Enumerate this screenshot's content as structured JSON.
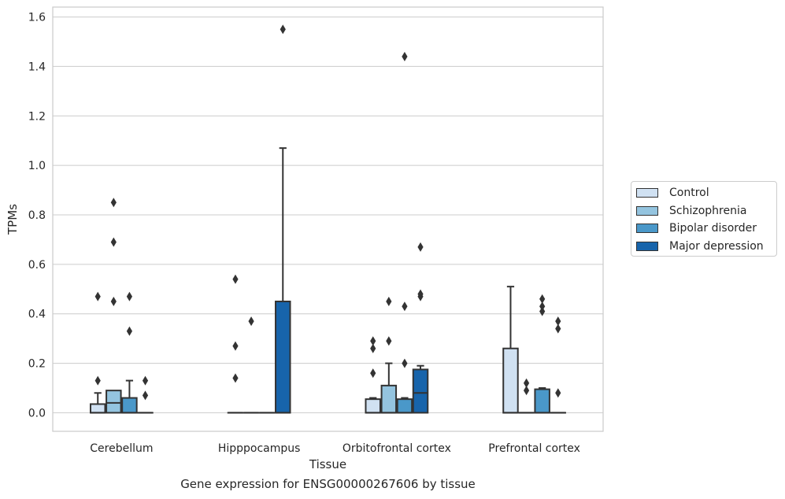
{
  "caption": "Gene expression for ENSG00000267606 by tissue",
  "chart_data": {
    "type": "box",
    "xlabel": "Tissue",
    "ylabel": "TPMs",
    "ylim": [
      -0.075,
      1.64
    ],
    "yticks": [
      "0.0",
      "0.2",
      "0.4",
      "0.6",
      "0.8",
      "1.0",
      "1.2",
      "1.4",
      "1.6"
    ],
    "grid": true,
    "legend_position": "right",
    "categories": [
      "Cerebellum",
      "Hipppocampus",
      "Orbitofrontal cortex",
      "Prefrontal cortex"
    ],
    "series": [
      {
        "name": "Control",
        "color": "#d0e1f2",
        "boxes": [
          {
            "q1": 0.0,
            "median": 0.0,
            "q3": 0.035,
            "whisker_low": 0.0,
            "whisker_high": 0.08,
            "outliers": [
              0.13,
              0.47
            ]
          },
          {
            "q1": 0.0,
            "median": 0.0,
            "q3": 0.0,
            "whisker_low": 0.0,
            "whisker_high": 0.0,
            "outliers": [
              0.14,
              0.27,
              0.54
            ]
          },
          {
            "q1": 0.0,
            "median": 0.0,
            "q3": 0.055,
            "whisker_low": 0.0,
            "whisker_high": 0.06,
            "outliers": [
              0.16,
              0.26,
              0.29
            ]
          },
          {
            "q1": 0.0,
            "median": 0.0,
            "q3": 0.26,
            "whisker_low": 0.0,
            "whisker_high": 0.51,
            "outliers": []
          }
        ]
      },
      {
        "name": "Schizophrenia",
        "color": "#94c4df",
        "boxes": [
          {
            "q1": 0.0,
            "median": 0.04,
            "q3": 0.09,
            "whisker_low": 0.0,
            "whisker_high": 0.09,
            "outliers": [
              0.45,
              0.69,
              0.85
            ]
          },
          {
            "q1": 0.0,
            "median": 0.0,
            "q3": 0.0,
            "whisker_low": 0.0,
            "whisker_high": 0.0,
            "outliers": [
              0.37
            ]
          },
          {
            "q1": 0.0,
            "median": 0.0,
            "q3": 0.11,
            "whisker_low": 0.0,
            "whisker_high": 0.2,
            "outliers": [
              0.29,
              0.45
            ]
          },
          {
            "q1": 0.0,
            "median": 0.0,
            "q3": 0.0,
            "whisker_low": 0.0,
            "whisker_high": 0.0,
            "outliers": [
              0.09,
              0.12
            ]
          }
        ]
      },
      {
        "name": "Bipolar disorder",
        "color": "#4a98c9",
        "boxes": [
          {
            "q1": 0.0,
            "median": 0.0,
            "q3": 0.06,
            "whisker_low": 0.0,
            "whisker_high": 0.13,
            "outliers": [
              0.33,
              0.47
            ]
          },
          {
            "q1": 0.0,
            "median": 0.0,
            "q3": 0.0,
            "whisker_low": 0.0,
            "whisker_high": 0.0,
            "outliers": []
          },
          {
            "q1": 0.0,
            "median": 0.0,
            "q3": 0.055,
            "whisker_low": 0.0,
            "whisker_high": 0.06,
            "outliers": [
              0.2,
              0.43,
              1.44
            ]
          },
          {
            "q1": 0.0,
            "median": 0.0,
            "q3": 0.095,
            "whisker_low": 0.0,
            "whisker_high": 0.1,
            "outliers": [
              0.41,
              0.43,
              0.46
            ]
          }
        ]
      },
      {
        "name": "Major depression",
        "color": "#1764ab",
        "boxes": [
          {
            "q1": 0.0,
            "median": 0.0,
            "q3": 0.0,
            "whisker_low": 0.0,
            "whisker_high": 0.0,
            "outliers": [
              0.07,
              0.13
            ]
          },
          {
            "q1": 0.0,
            "median": 0.0,
            "q3": 0.45,
            "whisker_low": 0.0,
            "whisker_high": 1.07,
            "outliers": [
              1.55
            ]
          },
          {
            "q1": 0.0,
            "median": 0.08,
            "q3": 0.175,
            "whisker_low": 0.0,
            "whisker_high": 0.19,
            "outliers": [
              0.47,
              0.48,
              0.67
            ]
          },
          {
            "q1": 0.0,
            "median": 0.0,
            "q3": 0.0,
            "whisker_low": 0.0,
            "whisker_high": 0.0,
            "outliers": [
              0.08,
              0.34,
              0.37
            ]
          }
        ]
      }
    ]
  }
}
